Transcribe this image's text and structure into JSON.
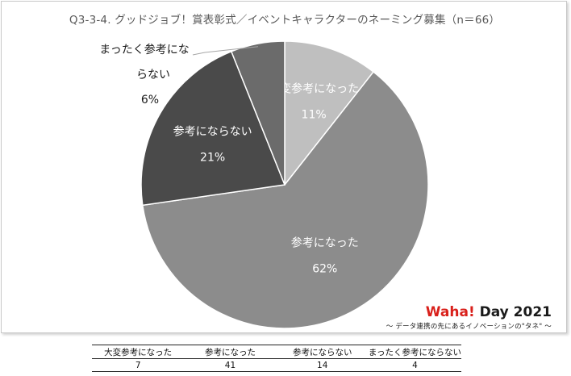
{
  "chart_data": {
    "type": "pie",
    "title": "Q3-3-4. グッドジョブ！賞表彰式／イベントキャラクターのネーミング募集（n＝66）",
    "slices": [
      {
        "label": "大変参考になった",
        "value": 7,
        "percent": "11%",
        "color": "#bfbfbf",
        "label_color": "#ffffff"
      },
      {
        "label": "参考になった",
        "value": 41,
        "percent": "62%",
        "color": "#8c8c8c",
        "label_color": "#ffffff"
      },
      {
        "label": "参考にならない",
        "value": 14,
        "percent": "21%",
        "color": "#4a4a4a",
        "label_color": "#ffffff"
      },
      {
        "label": "まったく参考にならない",
        "value": 4,
        "percent": "6%",
        "color": "#6b6b6b",
        "label_color": "#1a1a1a"
      }
    ],
    "outside_label_lines": [
      "まったく参考にな",
      "らない",
      "6%"
    ]
  },
  "brand": {
    "waha": "Waha!",
    "day": " Day 2021",
    "tagline": "～ データ連携の先にあるイノベーションの\"タネ\" ～"
  },
  "table": {
    "headers": [
      "大変参考になった",
      "参考になった",
      "参考にならない",
      "まったく参考にならない"
    ],
    "values": [
      "7",
      "41",
      "14",
      "4"
    ]
  }
}
